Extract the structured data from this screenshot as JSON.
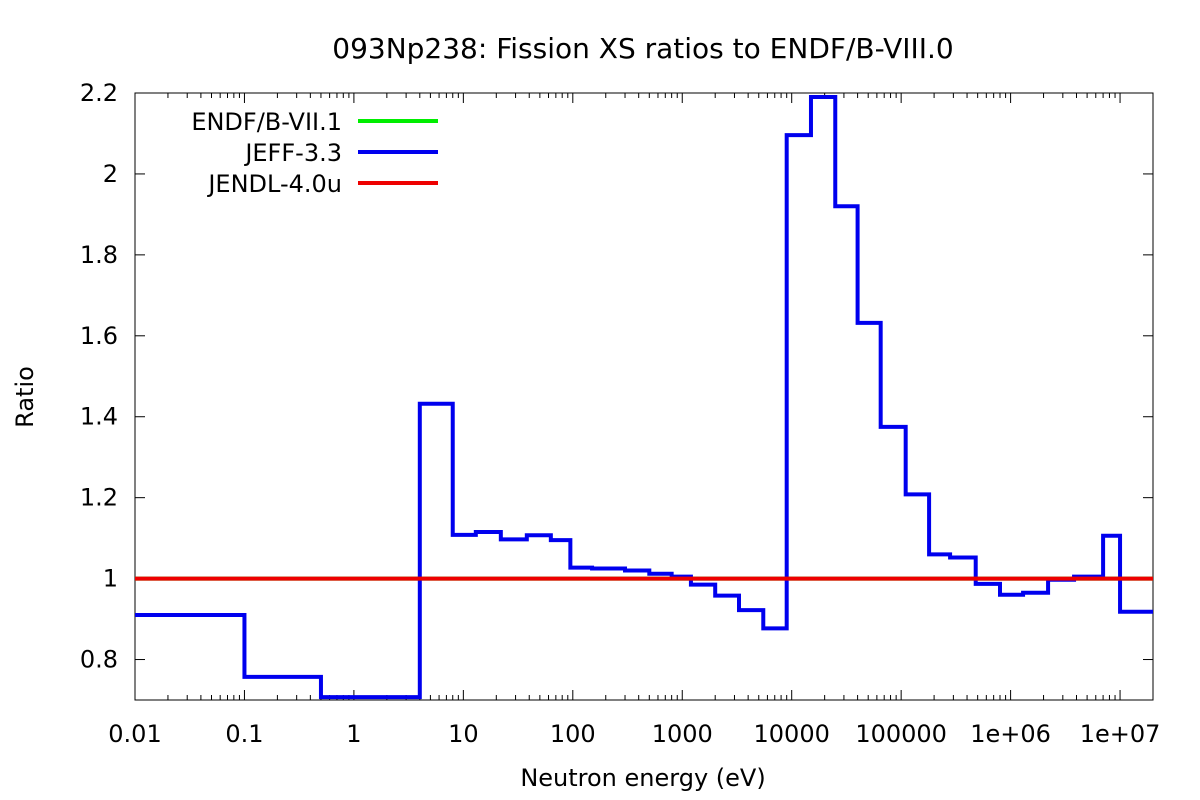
{
  "chart_data": {
    "type": "line",
    "title": "093Np238: Fission XS ratios to ENDF/B-VIII.0",
    "xlabel": "Neutron energy (eV)",
    "ylabel": "Ratio",
    "x_scale": "log",
    "xlim": [
      0.01,
      20000000
    ],
    "ylim": [
      0.7,
      2.2
    ],
    "x_ticks": [
      {
        "value": 0.01,
        "label": "0.01"
      },
      {
        "value": 0.1,
        "label": "0.1"
      },
      {
        "value": 1,
        "label": "1"
      },
      {
        "value": 10,
        "label": "10"
      },
      {
        "value": 100,
        "label": "100"
      },
      {
        "value": 1000,
        "label": "1000"
      },
      {
        "value": 10000,
        "label": "10000"
      },
      {
        "value": 100000,
        "label": "100000"
      },
      {
        "value": 1000000,
        "label": "1e+06"
      },
      {
        "value": 10000000,
        "label": "1e+07"
      }
    ],
    "y_ticks": [
      {
        "value": 0.8,
        "label": "0.8"
      },
      {
        "value": 1.0,
        "label": "1"
      },
      {
        "value": 1.2,
        "label": "1.2"
      },
      {
        "value": 1.4,
        "label": "1.4"
      },
      {
        "value": 1.6,
        "label": "1.6"
      },
      {
        "value": 1.8,
        "label": "1.8"
      },
      {
        "value": 2.0,
        "label": "2"
      },
      {
        "value": 2.2,
        "label": "2.2"
      }
    ],
    "grid": false,
    "legend_position": "top-left",
    "series": [
      {
        "name": "ENDF/B-VII.1",
        "color": "#00ee00",
        "step": true,
        "points": [
          [
            0.01,
            1.0
          ],
          [
            20000000,
            1.0
          ]
        ]
      },
      {
        "name": "JEFF-3.3",
        "color": "#0000ee",
        "step": true,
        "points": [
          [
            0.01,
            0.91
          ],
          [
            0.1,
            0.757
          ],
          [
            0.5,
            0.707
          ],
          [
            4,
            1.432
          ],
          [
            8,
            1.108
          ],
          [
            13,
            1.115
          ],
          [
            22,
            1.097
          ],
          [
            38,
            1.107
          ],
          [
            63,
            1.095
          ],
          [
            95,
            1.027
          ],
          [
            150,
            1.025
          ],
          [
            300,
            1.02
          ],
          [
            500,
            1.012
          ],
          [
            800,
            1.005
          ],
          [
            1200,
            0.985
          ],
          [
            2000,
            0.958
          ],
          [
            3300,
            0.922
          ],
          [
            5500,
            0.877
          ],
          [
            9000,
            2.096
          ],
          [
            15000,
            2.19
          ],
          [
            25000,
            1.92
          ],
          [
            40000,
            1.632
          ],
          [
            65000,
            1.375
          ],
          [
            110000,
            1.208
          ],
          [
            180000,
            1.06
          ],
          [
            280000,
            1.052
          ],
          [
            480000,
            0.987
          ],
          [
            800000,
            0.96
          ],
          [
            1300000,
            0.965
          ],
          [
            2200000,
            0.997
          ],
          [
            3800000,
            1.005
          ],
          [
            7000000,
            1.106
          ],
          [
            10000000,
            0.918
          ],
          [
            20000000,
            0.918
          ]
        ]
      },
      {
        "name": "JENDL-4.0u",
        "color": "#ee0000",
        "step": true,
        "points": [
          [
            0.01,
            1.0
          ],
          [
            20000000,
            1.0
          ]
        ]
      }
    ]
  }
}
